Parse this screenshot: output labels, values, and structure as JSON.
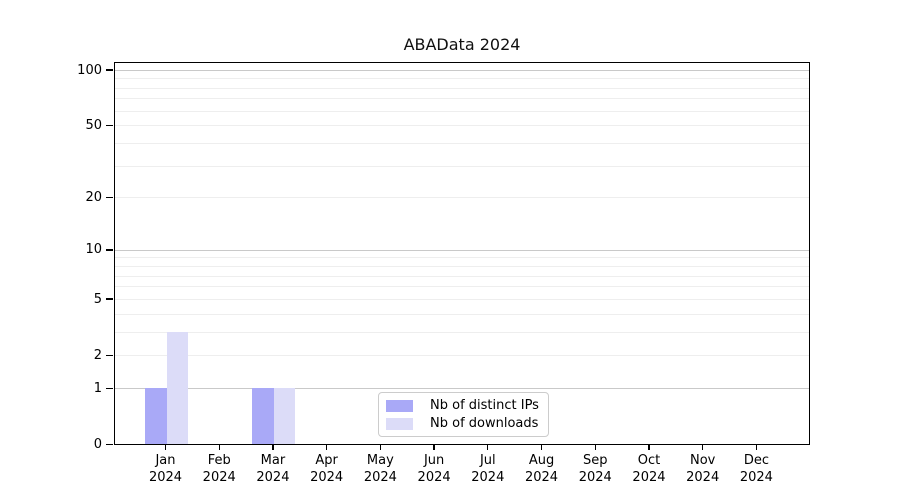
{
  "chart_data": {
    "type": "bar",
    "title": "ABAData 2024",
    "categories": [
      "Jan 2024",
      "Feb 2024",
      "Mar 2024",
      "Apr 2024",
      "May 2024",
      "Jun 2024",
      "Jul 2024",
      "Aug 2024",
      "Sep 2024",
      "Oct 2024",
      "Nov 2024",
      "Dec 2024"
    ],
    "x_axis": {
      "months": [
        "Jan",
        "Feb",
        "Mar",
        "Apr",
        "May",
        "Jun",
        "Jul",
        "Aug",
        "Sep",
        "Oct",
        "Nov",
        "Dec"
      ],
      "year": "2024"
    },
    "y_axis": {
      "scale": "log1p",
      "tick_labels": [
        0,
        1,
        2,
        5,
        10,
        20,
        50,
        100
      ],
      "major_gridlines": [
        1,
        10,
        100
      ],
      "minor_gridlines": [
        2,
        3,
        4,
        5,
        6,
        7,
        8,
        9,
        20,
        30,
        40,
        50,
        60,
        70,
        80,
        90
      ],
      "ylim": [
        0,
        111
      ]
    },
    "series": [
      {
        "name": "Nb of distinct IPs",
        "color": "#a9a9f7",
        "values": [
          1,
          0,
          1,
          0,
          0,
          0,
          0,
          0,
          0,
          0,
          0,
          0
        ]
      },
      {
        "name": "Nb of downloads",
        "color": "#dcdcf8",
        "values": [
          3,
          0,
          1,
          0,
          0,
          0,
          0,
          0,
          0,
          0,
          0,
          0
        ]
      }
    ],
    "legend": {
      "position": "lower center",
      "entries": [
        "Nb of distinct IPs",
        "Nb of downloads"
      ]
    },
    "grid": true,
    "colors": {
      "grid_major": "#c9c9c9",
      "grid_minor": "#eeeeee",
      "axis": "#000000",
      "background": "#ffffff"
    }
  }
}
